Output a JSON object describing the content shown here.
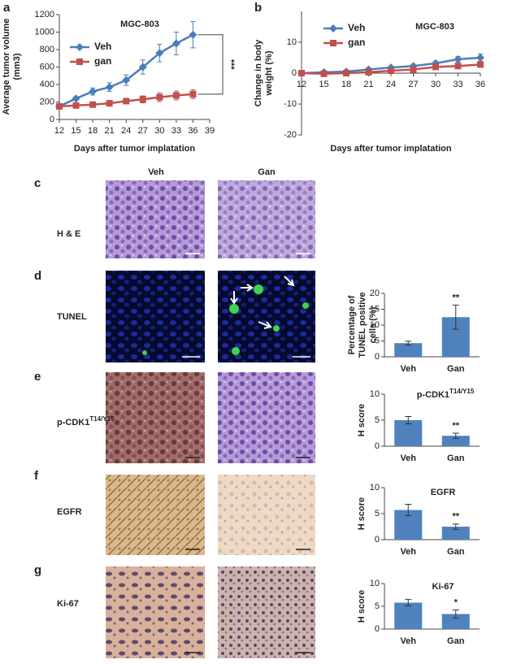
{
  "chart_data": [
    {
      "type": "line",
      "title": "MGC-803",
      "xlabel": "Days after tumor implatation",
      "ylabel": [
        "Average tumor volume",
        "(mm3)"
      ],
      "x": [
        12,
        15,
        18,
        21,
        24,
        27,
        30,
        33,
        36
      ],
      "series": [
        {
          "name": "Veh",
          "color": "#4a7ebb",
          "marker": "diamond",
          "values": [
            150,
            240,
            320,
            370,
            450,
            600,
            760,
            870,
            970
          ],
          "errors": [
            0,
            20,
            40,
            50,
            60,
            80,
            100,
            130,
            150
          ]
        },
        {
          "name": "gan",
          "color": "#c0504d",
          "marker": "square",
          "values": [
            150,
            160,
            170,
            185,
            210,
            230,
            255,
            275,
            290
          ],
          "errors": [
            20,
            20,
            20,
            20,
            25,
            40,
            50,
            50,
            50
          ]
        }
      ],
      "xlim": [
        12,
        39
      ],
      "xticks": [
        12,
        15,
        18,
        21,
        24,
        27,
        30,
        33,
        36,
        39
      ],
      "ylim": [
        0,
        1200
      ],
      "yticks": [
        0,
        200,
        400,
        600,
        800,
        1000,
        1200
      ],
      "annotation": "***"
    },
    {
      "type": "line",
      "title": "MGC-803",
      "xlabel": "Days after tumor implatation",
      "ylabel": [
        "Change in body",
        "weight (%)"
      ],
      "x": [
        12,
        15,
        18,
        21,
        24,
        27,
        30,
        33,
        36
      ],
      "series": [
        {
          "name": "Veh",
          "color": "#4a7ebb",
          "marker": "diamond",
          "values": [
            0,
            0.3,
            0.5,
            1.2,
            1.8,
            2.3,
            3.2,
            4.5,
            5
          ],
          "errors": [
            0.3,
            0.4,
            0.4,
            0.5,
            0.5,
            0.6,
            0.7,
            0.9,
            1.2
          ]
        },
        {
          "name": "gan",
          "color": "#c0504d",
          "marker": "square",
          "values": [
            0,
            -0.2,
            0,
            0.3,
            0.8,
            1.2,
            2,
            2.3,
            2.8
          ],
          "errors": [
            0.3,
            0.3,
            0.3,
            0.4,
            0.4,
            0.5,
            0.6,
            0.7,
            0.9
          ]
        }
      ],
      "xlim": [
        12,
        36
      ],
      "xticks": [
        12,
        15,
        18,
        21,
        24,
        27,
        30,
        33,
        36
      ],
      "ylim": [
        -20,
        20
      ],
      "yticks": [
        -20,
        -10,
        0,
        10
      ]
    },
    {
      "type": "bar",
      "ylabel": [
        "Percentage of",
        "TUNEL positive",
        "cells (%)"
      ],
      "categories": [
        "Veh",
        "Gan"
      ],
      "values": [
        4.3,
        12.5
      ],
      "errors": [
        0.6,
        3.8
      ],
      "color": "#4f81bd",
      "ylim": [
        0,
        20
      ],
      "yticks": [
        0,
        5,
        10,
        15,
        20
      ],
      "annotation": "**"
    },
    {
      "type": "bar",
      "title": "p-CDK1",
      "title_superscript": "T14/Y15",
      "ylabel": [
        "H score"
      ],
      "categories": [
        "Veh",
        "Gan"
      ],
      "values": [
        5,
        2
      ],
      "errors": [
        0.7,
        0.5
      ],
      "color": "#4f81bd",
      "ylim": [
        0,
        10
      ],
      "yticks": [
        0,
        5,
        10
      ],
      "annotation": "**"
    },
    {
      "type": "bar",
      "title": "EGFR",
      "ylabel": [
        "H score"
      ],
      "categories": [
        "Veh",
        "Gan"
      ],
      "values": [
        5.7,
        2.5
      ],
      "errors": [
        1.1,
        0.5
      ],
      "color": "#4f81bd",
      "ylim": [
        0,
        10
      ],
      "yticks": [
        0,
        5,
        10
      ],
      "annotation": "**"
    },
    {
      "type": "bar",
      "title": "Ki-67",
      "ylabel": [
        "H score"
      ],
      "categories": [
        "Veh",
        "Gan"
      ],
      "values": [
        5.8,
        3.3
      ],
      "errors": [
        0.7,
        0.9
      ],
      "color": "#4f81bd",
      "ylim": [
        0,
        10
      ],
      "yticks": [
        0,
        5,
        10
      ],
      "annotation": "*"
    }
  ],
  "panel_labels": [
    "a",
    "b",
    "c",
    "d",
    "e",
    "f",
    "g"
  ],
  "micrographs": {
    "columns": [
      "Veh",
      "Gan"
    ],
    "rows": [
      "H & E",
      "TUNEL",
      "p-CDK1",
      "EGFR",
      "Ki-67"
    ],
    "row_superscript": "T14/Y15"
  }
}
